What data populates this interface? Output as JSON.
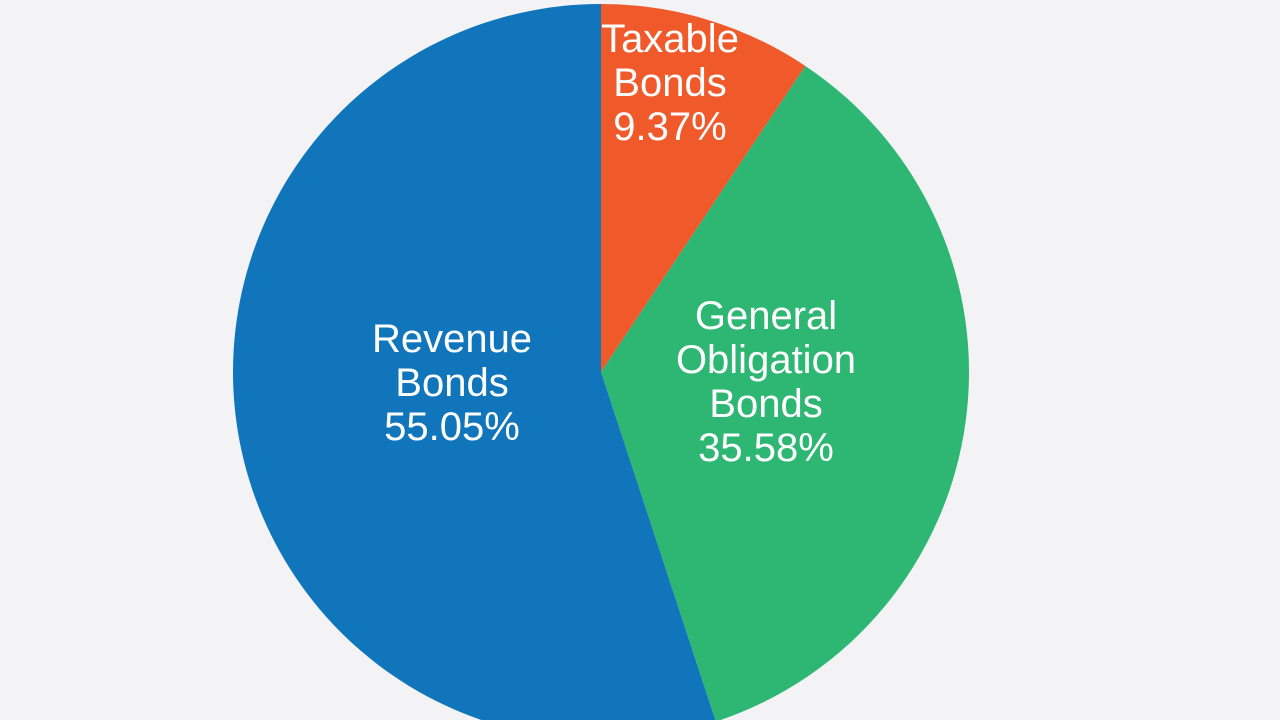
{
  "background_color": "#f3f3f5",
  "chart_data": {
    "type": "pie",
    "title": "",
    "start_angle_deg": 0,
    "direction": "clockwise",
    "slices": [
      {
        "label_lines": [
          "Taxable",
          "Bonds"
        ],
        "value_text": "9.37%",
        "value": 9.37,
        "color": "#f05a2b"
      },
      {
        "label_lines": [
          "General",
          "Obligation",
          "Bonds"
        ],
        "value_text": "35.58%",
        "value": 35.58,
        "color": "#2eb673"
      },
      {
        "label_lines": [
          "Revenue",
          "Bonds"
        ],
        "value_text": "55.05%",
        "value": 55.05,
        "color": "#1075bb"
      }
    ]
  }
}
